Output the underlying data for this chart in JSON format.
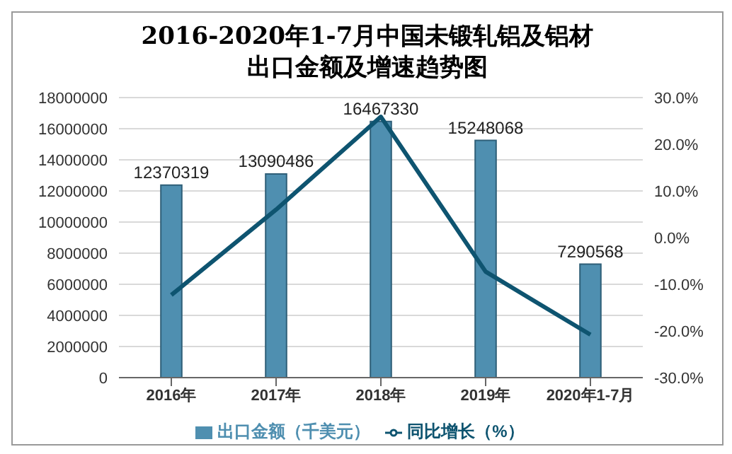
{
  "chart_data": {
    "type": "bar",
    "title": "2016-2020年1-7月中国未锻轧铝及铝材出口金额及增速趋势图",
    "categories": [
      "2016年",
      "2017年",
      "2018年",
      "2019年",
      "2020年1-7月"
    ],
    "series": [
      {
        "name": "出口金额（千美元）",
        "color": "#4f8fb0",
        "values": [
          12370319,
          13090486,
          16467330,
          15248068,
          7290568
        ],
        "value_labels": [
          "12370319",
          "13090486",
          "16467330",
          "15248068",
          "7290568"
        ]
      },
      {
        "name": "同比增长（%）",
        "type": "line",
        "axis": "y2",
        "color": "#0e5470",
        "values": [
          -12.3,
          6,
          25.9,
          -7.3,
          -20.8
        ]
      }
    ],
    "ylim": [
      0,
      18000000
    ],
    "yticks": [
      0,
      2000000,
      4000000,
      6000000,
      8000000,
      10000000,
      12000000,
      14000000,
      16000000,
      18000000
    ],
    "y2lim": [
      -30,
      30
    ],
    "y2ticks": [
      {
        "value": -30,
        "label": "-30.0%"
      },
      {
        "value": -20,
        "label": "-20.0%"
      },
      {
        "value": -10,
        "label": "-10.0%"
      },
      {
        "value": 0,
        "label": "0.0%"
      },
      {
        "value": 10,
        "label": "10.0%"
      },
      {
        "value": 20,
        "label": "20.0%"
      },
      {
        "value": 30,
        "label": "30.0%"
      }
    ],
    "grid": "y",
    "legend": "bottom",
    "marker": "none",
    "line_style": "solid"
  }
}
